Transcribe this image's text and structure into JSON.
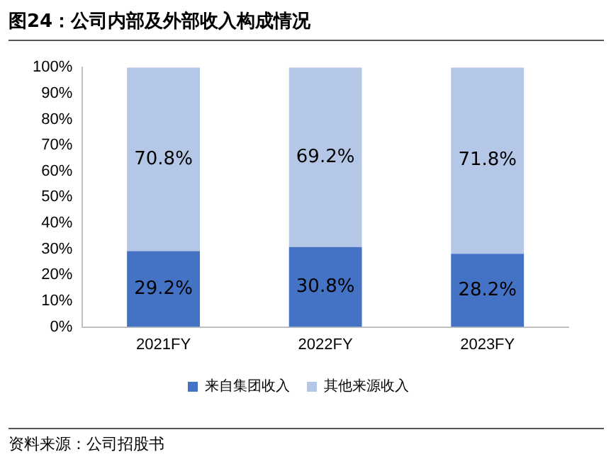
{
  "chart_data": {
    "type": "bar",
    "title": "图24：公司内部及外部收入构成情况",
    "categories": [
      "2021FY",
      "2022FY",
      "2023FY"
    ],
    "series": [
      {
        "name": "来自集团收入",
        "color": "#4472c4",
        "values": [
          29.2,
          30.8,
          28.2
        ],
        "value_labels": [
          "29.2%",
          "30.8%",
          "28.2%"
        ]
      },
      {
        "name": "其他来源收入",
        "color": "#b4c7e7",
        "values": [
          70.8,
          69.2,
          71.8
        ],
        "value_labels": [
          "70.8%",
          "69.2%",
          "71.8%"
        ]
      }
    ],
    "stacked": true,
    "ylim": [
      0,
      100
    ],
    "yticks": [
      {
        "value": 0,
        "label": "0%"
      },
      {
        "value": 10,
        "label": "10%"
      },
      {
        "value": 20,
        "label": "20%"
      },
      {
        "value": 30,
        "label": "30%"
      },
      {
        "value": 40,
        "label": "40%"
      },
      {
        "value": 50,
        "label": "50%"
      },
      {
        "value": 60,
        "label": "60%"
      },
      {
        "value": 70,
        "label": "70%"
      },
      {
        "value": 80,
        "label": "80%"
      },
      {
        "value": 90,
        "label": "90%"
      },
      {
        "value": 100,
        "label": "100%"
      }
    ],
    "grid": false,
    "legend": "bottom",
    "annotations": [
      "资料来源：公司招股书"
    ]
  }
}
